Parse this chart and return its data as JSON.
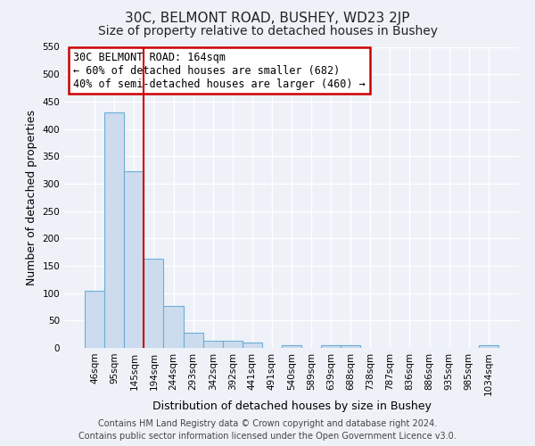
{
  "title": "30C, BELMONT ROAD, BUSHEY, WD23 2JP",
  "subtitle": "Size of property relative to detached houses in Bushey",
  "xlabel": "Distribution of detached houses by size in Bushey",
  "ylabel": "Number of detached properties",
  "bar_labels": [
    "46sqm",
    "95sqm",
    "145sqm",
    "194sqm",
    "244sqm",
    "293sqm",
    "342sqm",
    "392sqm",
    "441sqm",
    "491sqm",
    "540sqm",
    "589sqm",
    "639sqm",
    "688sqm",
    "738sqm",
    "787sqm",
    "836sqm",
    "886sqm",
    "935sqm",
    "985sqm",
    "1034sqm"
  ],
  "bar_values": [
    105,
    430,
    323,
    163,
    76,
    27,
    13,
    13,
    10,
    0,
    5,
    0,
    5,
    5,
    0,
    0,
    0,
    0,
    0,
    0,
    5
  ],
  "bar_color": "#ccdcee",
  "bar_edge_color": "#6aaed6",
  "ylim": [
    0,
    550
  ],
  "yticks": [
    0,
    50,
    100,
    150,
    200,
    250,
    300,
    350,
    400,
    450,
    500,
    550
  ],
  "vline_color": "#cc0000",
  "annotation_title": "30C BELMONT ROAD: 164sqm",
  "annotation_line1": "← 60% of detached houses are smaller (682)",
  "annotation_line2": "40% of semi-detached houses are larger (460) →",
  "annotation_box_color": "#cc0000",
  "footer_line1": "Contains HM Land Registry data © Crown copyright and database right 2024.",
  "footer_line2": "Contains public sector information licensed under the Open Government Licence v3.0.",
  "background_color": "#eef2f8",
  "grid_color": "#ffffff",
  "title_fontsize": 11,
  "subtitle_fontsize": 10,
  "label_fontsize": 9,
  "tick_fontsize": 7.5,
  "footer_fontsize": 7,
  "annotation_fontsize": 8.5
}
